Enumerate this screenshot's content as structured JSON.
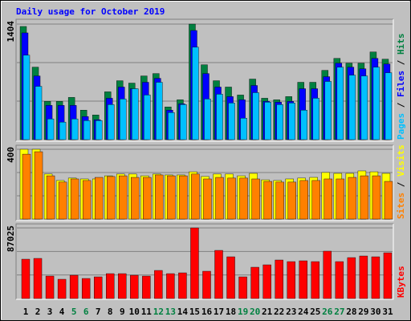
{
  "chart_data": [
    {
      "type": "bar",
      "title": "Daily usage for October 2019",
      "title_color": "#0000ff",
      "ylim": [
        0,
        1404
      ],
      "yticks": [
        1404
      ],
      "legend_separator": " / ",
      "series": [
        {
          "name": "Hits",
          "color": "#008040",
          "values": [
            1375,
            881,
            465,
            465,
            513,
            358,
            300,
            581,
            716,
            687,
            774,
            803,
            397,
            484,
            1404,
            910,
            716,
            639,
            542,
            736,
            503,
            484,
            523,
            697,
            697,
            842,
            987,
            929,
            929,
            1065,
            978
          ]
        },
        {
          "name": "Files",
          "color": "#0000ff",
          "values": [
            1297,
            774,
            416,
            416,
            416,
            281,
            242,
            503,
            639,
            619,
            697,
            745,
            358,
            435,
            1326,
            803,
            639,
            523,
            484,
            658,
            465,
            455,
            465,
            619,
            619,
            765,
            929,
            881,
            861,
            987,
            919
          ]
        },
        {
          "name": "Pages",
          "color": "#00c0ff",
          "values": [
            1026,
            648,
            252,
            213,
            252,
            232,
            232,
            426,
            494,
            619,
            542,
            697,
            329,
            426,
            1123,
            494,
            552,
            445,
            261,
            571,
            455,
            426,
            445,
            358,
            503,
            707,
            881,
            784,
            774,
            881,
            813
          ]
        }
      ]
    },
    {
      "type": "bar",
      "ylim": [
        0,
        400
      ],
      "yticks": [
        400
      ],
      "legend_separator": " / ",
      "series": [
        {
          "name": "Visits",
          "color": "#ffff00",
          "values": [
            400,
            400,
            258,
            221,
            235,
            230,
            230,
            248,
            258,
            258,
            248,
            258,
            253,
            253,
            271,
            244,
            258,
            258,
            248,
            262,
            225,
            221,
            230,
            235,
            239,
            267,
            262,
            262,
            276,
            271,
            262
          ]
        },
        {
          "name": "Sites",
          "color": "#ff8000",
          "values": [
            372,
            386,
            248,
            212,
            230,
            221,
            239,
            244,
            248,
            239,
            239,
            253,
            248,
            248,
            258,
            230,
            239,
            235,
            235,
            230,
            216,
            212,
            212,
            221,
            221,
            230,
            230,
            239,
            248,
            248,
            216
          ]
        }
      ]
    },
    {
      "type": "bar",
      "ylim": [
        0,
        87025
      ],
      "yticks": [
        87025
      ],
      "categories": [
        "1",
        "2",
        "3",
        "4",
        "5",
        "6",
        "7",
        "8",
        "9",
        "10",
        "11",
        "12",
        "13",
        "14",
        "15",
        "16",
        "17",
        "18",
        "19",
        "20",
        "21",
        "22",
        "23",
        "24",
        "25",
        "26",
        "27",
        "28",
        "29",
        "30",
        "31"
      ],
      "category_colors": [
        "#000000",
        "#000000",
        "#000000",
        "#000000",
        "#008040",
        "#008040",
        "#000000",
        "#000000",
        "#000000",
        "#000000",
        "#000000",
        "#008040",
        "#008040",
        "#000000",
        "#000000",
        "#000000",
        "#000000",
        "#000000",
        "#008040",
        "#008040",
        "#000000",
        "#000000",
        "#000000",
        "#000000",
        "#000000",
        "#008040",
        "#008040",
        "#000000",
        "#000000",
        "#000000",
        "#000000"
      ],
      "series": [
        {
          "name": "KBytes",
          "color": "#ff0000",
          "values": [
            48457,
            49446,
            27690,
            23734,
            28679,
            24723,
            26701,
            30656,
            30656,
            28679,
            27690,
            34612,
            30656,
            31645,
            87025,
            33623,
            59335,
            51424,
            26701,
            38567,
            41534,
            47468,
            45490,
            46479,
            45490,
            58346,
            45490,
            50435,
            52413,
            51424,
            56368
          ]
        }
      ]
    }
  ]
}
